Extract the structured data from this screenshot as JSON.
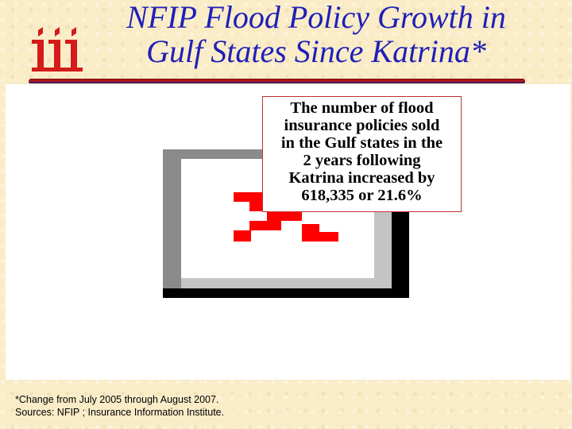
{
  "title": {
    "line1": "NFIP Flood Policy Growth in",
    "line2": "Gulf States Since Katrina*"
  },
  "logo": {
    "icon": "iii-logo-icon",
    "color": "#d51a1a"
  },
  "callout": {
    "lines": [
      "The number of flood",
      "insurance policies sold",
      "in the Gulf states in the",
      "2 years following",
      "Katrina increased by",
      "618,335 or 21.6%"
    ]
  },
  "footnote": {
    "line1": "*Change from July 2005 through August 2007.",
    "line2": "Sources: NFIP ; Insurance Information Institute."
  },
  "chart_data": {
    "type": "other",
    "note_text": "",
    "values": [],
    "colors": {
      "frame_dark": "#000000",
      "frame_gray": "#8a8a8a",
      "frame_light": "#c4c4c4",
      "marks": "#ff0000"
    }
  }
}
